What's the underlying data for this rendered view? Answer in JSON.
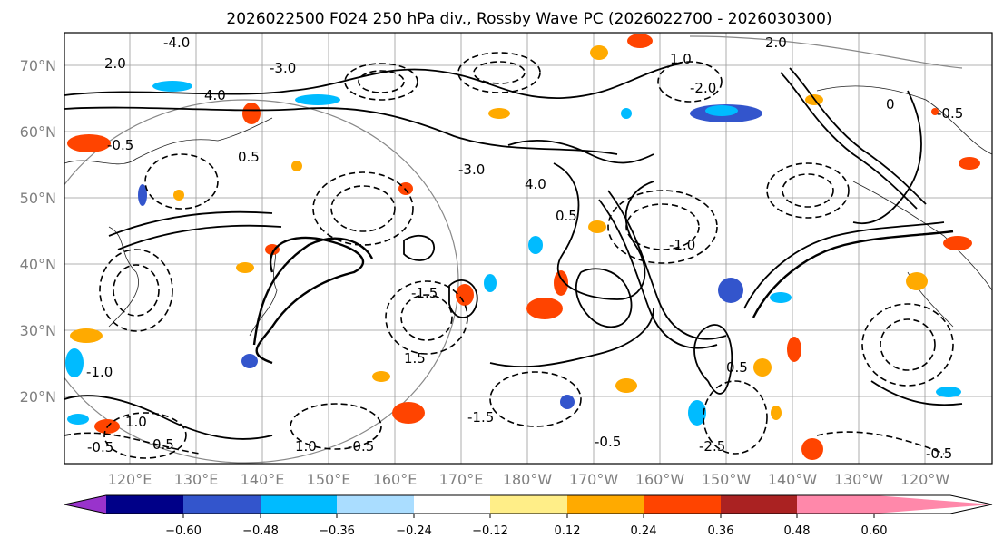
{
  "figure": {
    "title": "2026022500 F024 250 hPa div., Rossby Wave PC (2026022700 - 2026030300)"
  },
  "map": {
    "lat_labels": [
      "70°N",
      "60°N",
      "50°N",
      "40°N",
      "30°N",
      "20°N"
    ],
    "lon_labels": [
      "120°E",
      "130°E",
      "140°E",
      "150°E",
      "160°E",
      "170°E",
      "180°W",
      "170°W",
      "160°W",
      "150°W",
      "140°W",
      "130°W",
      "120°W"
    ],
    "contour_labels": [
      "-4.0",
      "2.0",
      "-3.0",
      "4.0",
      "-0.5",
      "2.0",
      "1.0",
      "-2.0",
      "-0.5",
      "0.5",
      "-3.0",
      "4.0",
      "-1.0",
      "0.5",
      "1.5",
      "-1.5",
      "-0.5",
      "1.0",
      "-1.0",
      "0.5",
      "-0.5",
      "1.0",
      "-0.5",
      "0.5",
      "-1.5",
      "-2.5",
      "0",
      "-0.5"
    ]
  },
  "colorbar": {
    "ticks": [
      "−0.60",
      "−0.48",
      "−0.36",
      "−0.24",
      "−0.12",
      "0.12",
      "0.24",
      "0.36",
      "0.48",
      "0.60"
    ],
    "colors": [
      "#9933cc",
      "#000088",
      "#3355cc",
      "#00bbff",
      "#aaddff",
      "#ffffff",
      "#ffee88",
      "#ffaa00",
      "#ff4400",
      "#aa2222",
      "#ff88aa"
    ]
  }
}
